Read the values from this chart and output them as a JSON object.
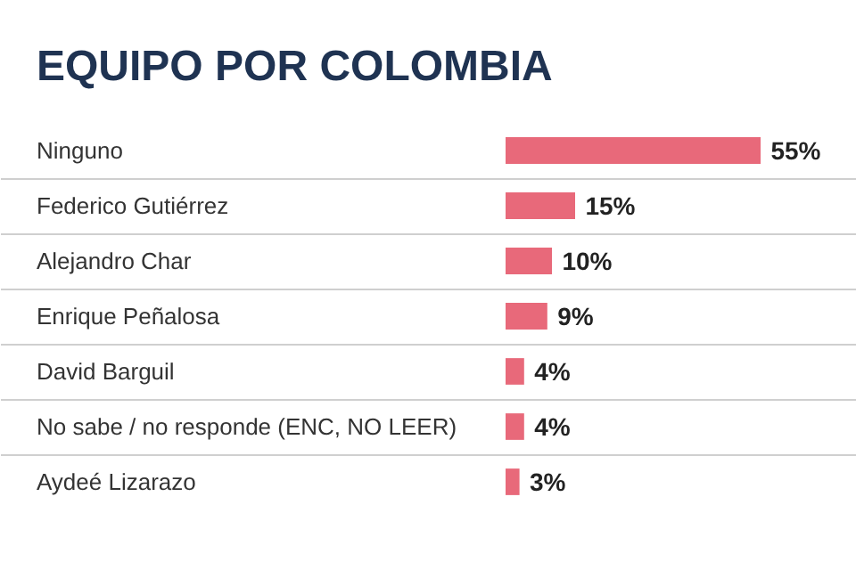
{
  "chart_data": {
    "type": "bar",
    "orientation": "horizontal",
    "title": "EQUIPO POR COLOMBIA",
    "categories": [
      "Ninguno",
      "Federico Gutiérrez",
      "Alejandro Char",
      "Enrique Peñalosa",
      "David Barguil",
      "No sabe / no responde (ENC, NO LEER)",
      "Aydeé Lizarazo"
    ],
    "values": [
      55,
      15,
      10,
      9,
      4,
      4,
      3
    ],
    "value_labels": [
      "55%",
      "15%",
      "10%",
      "9%",
      "4%",
      "4%",
      "3%"
    ],
    "color": "#e8697a",
    "grid": "y"
  }
}
